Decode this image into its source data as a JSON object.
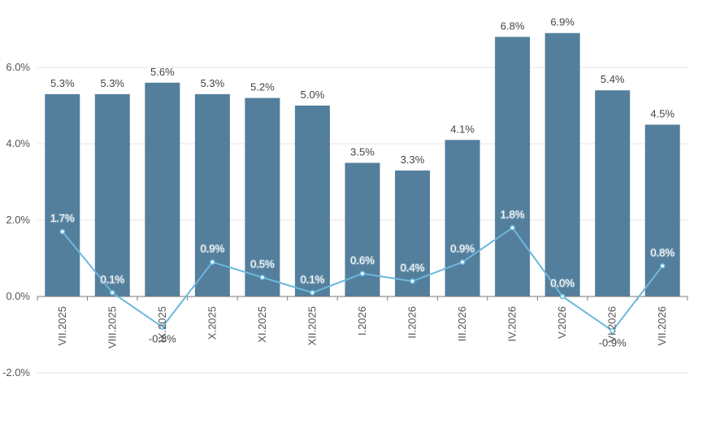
{
  "chart_data": {
    "type": "bar",
    "categories": [
      "VII.2025",
      "VIII.2025",
      "IX.2025",
      "X.2025",
      "XI.2025",
      "XII.2025",
      "I.2026",
      "II.2026",
      "III.2026",
      "IV.2026",
      "V.2026",
      "VI.2026",
      "VII.2026"
    ],
    "series": [
      {
        "type": "bar",
        "values": [
          5.3,
          5.3,
          5.6,
          5.3,
          5.2,
          5.0,
          3.5,
          3.3,
          4.1,
          6.8,
          6.9,
          5.4,
          4.5
        ],
        "labels": [
          "5.3%",
          "5.3%",
          "5.6%",
          "5.3%",
          "5.2%",
          "5.0%",
          "3.5%",
          "3.3%",
          "4.1%",
          "6.8%",
          "6.9%",
          "5.4%",
          "4.5%"
        ],
        "color": "#537f9c"
      },
      {
        "type": "line",
        "values": [
          1.7,
          0.1,
          -0.8,
          0.9,
          0.5,
          0.1,
          0.6,
          0.4,
          0.9,
          1.8,
          0.0,
          -0.9,
          0.8
        ],
        "labels": [
          "1.7%",
          "0.1%",
          "-0.8%",
          "0.9%",
          "0.5%",
          "0.1%",
          "0.6%",
          "0.4%",
          "0.9%",
          "1.8%",
          "0.0%",
          "-0.9%",
          "0.8%"
        ],
        "color": "#6cb8dc"
      }
    ],
    "y_ticks": [
      "6.0%",
      "4.0%",
      "2.0%",
      "0.0%",
      "-2.0%"
    ],
    "y_tick_values": [
      6,
      4,
      2,
      0,
      -2
    ],
    "ylim": [
      -2,
      6.9
    ],
    "grid": true,
    "title": "",
    "xlabel": "",
    "ylabel": ""
  }
}
